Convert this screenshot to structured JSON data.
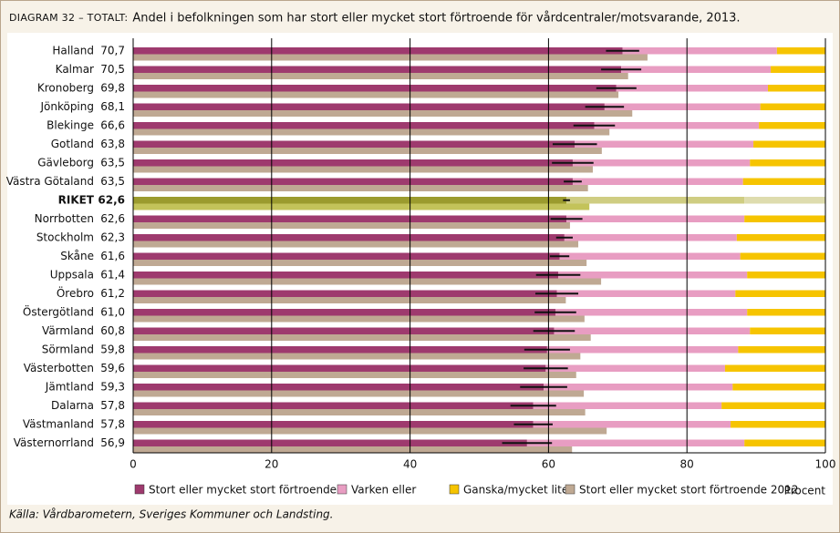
{
  "chart_data": {
    "type": "bar",
    "orientation": "horizontal",
    "diagram_label": "DIAGRAM 32 – TOTALT:",
    "title": "Andel i befolkningen som har stort eller mycket stort förtroende för vårdcentraler/motsvarande, 2013.",
    "source": "Källa: Vårdbarometern, Sveriges Kommuner och Landsting.",
    "xlabel": "Procent",
    "xlim": [
      0,
      100
    ],
    "xticks": [
      0,
      20,
      40,
      60,
      80,
      100
    ],
    "grid": true,
    "legend": "bottom",
    "categories": [
      "Halland",
      "Kalmar",
      "Kronoberg",
      "Jönköping",
      "Blekinge",
      "Gotland",
      "Gävleborg",
      "Västra Götaland",
      "RIKET",
      "Norrbotten",
      "Stockholm",
      "Skåne",
      "Uppsala",
      "Örebro",
      "Östergötland",
      "Värmland",
      "Sörmland",
      "Västerbotten",
      "Jämtland",
      "Dalarna",
      "Västmanland",
      "Västernorrland"
    ],
    "highlight_index": 8,
    "highlight_colors": [
      "#9b9b2e",
      "#cfcd82",
      "#dedcae",
      "#c3c35a"
    ],
    "series": [
      {
        "name": "Stort eller mycket stort förtroende",
        "color": "#9e3a6e",
        "stack": "2013",
        "values": [
          70.7,
          70.5,
          69.8,
          68.1,
          66.6,
          63.8,
          63.5,
          63.5,
          62.6,
          62.6,
          62.3,
          61.6,
          61.4,
          61.2,
          61.0,
          60.8,
          59.8,
          59.6,
          59.3,
          57.8,
          57.8,
          56.9
        ],
        "value_labels": [
          "70,7",
          "70,5",
          "69,8",
          "68,1",
          "66,6",
          "63,8",
          "63,5",
          "63,5",
          "62,6",
          "62,6",
          "62,3",
          "61,6",
          "61,4",
          "61,2",
          "61,0",
          "60,8",
          "59,8",
          "59,6",
          "59,3",
          "57,8",
          "57,8",
          "56,9"
        ],
        "errors": [
          2.4,
          2.9,
          2.9,
          2.8,
          3.0,
          3.2,
          3.0,
          1.3,
          0.5,
          2.3,
          1.2,
          1.4,
          3.2,
          3.1,
          3.0,
          3.0,
          3.3,
          3.2,
          3.4,
          3.3,
          2.8,
          3.6
        ]
      },
      {
        "name": "Varken eller",
        "color": "#e89dc2",
        "stack": "2013",
        "values": [
          22.3,
          21.6,
          21.9,
          22.5,
          23.8,
          25.8,
          25.6,
          24.6,
          25.7,
          25.7,
          24.9,
          26.1,
          27.3,
          25.8,
          27.7,
          28.3,
          27.6,
          25.9,
          27.3,
          27.2,
          28.5,
          31.4
        ]
      },
      {
        "name": "Ganska/mycket litet",
        "color": "#f6c400",
        "stack": "2013",
        "values": [
          7.0,
          7.9,
          8.3,
          9.4,
          9.6,
          10.4,
          10.9,
          11.9,
          11.7,
          11.7,
          12.8,
          12.3,
          11.3,
          13.0,
          11.3,
          10.9,
          12.6,
          14.5,
          13.4,
          15.0,
          13.7,
          11.7
        ]
      },
      {
        "name": "Stort eller mycket stort förtroende 2012",
        "color": "#bfa993",
        "stack": "2012",
        "values": [
          74.3,
          71.5,
          70.1,
          72.1,
          68.8,
          67.7,
          66.4,
          65.7,
          65.9,
          63.1,
          64.3,
          65.5,
          67.6,
          62.5,
          65.2,
          66.1,
          64.6,
          64.0,
          65.1,
          65.3,
          68.4,
          63.4
        ]
      }
    ]
  }
}
